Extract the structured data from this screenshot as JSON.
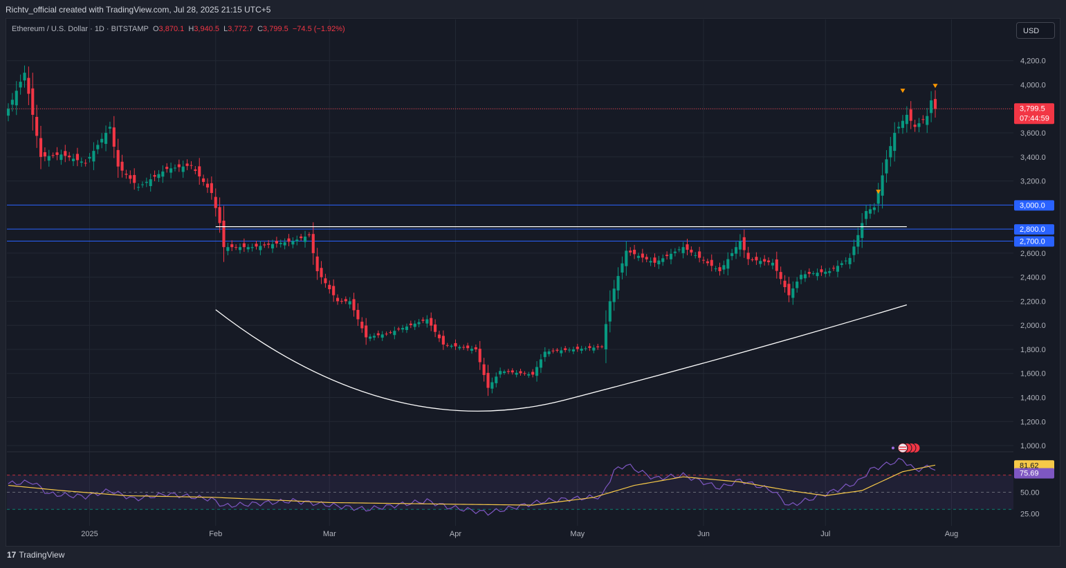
{
  "header": {
    "attribution": "Richtv_official created with TradingView.com, Jul 28, 2025 21:15 UTC+5"
  },
  "legend": {
    "symbol": "Ethereum / U.S. Dollar · 1D · BITSTAMP",
    "o_key": "O",
    "o_val": "3,870.1",
    "h_key": "H",
    "h_val": "3,940.5",
    "l_key": "L",
    "l_val": "3,772.7",
    "c_key": "C",
    "c_val": "3,799.5",
    "change": "−74.5 (−1.92%)"
  },
  "currency_button": "USD",
  "footer": {
    "brand": "TradingView",
    "brand_mark": "17"
  },
  "colors": {
    "up": "#089981",
    "down": "#f23645",
    "grid": "#232834",
    "level_line": "#2962ff",
    "rsi": "#7e57c2",
    "rsi_ma": "#f7c948",
    "text": "#b2b5be"
  },
  "chart_data": {
    "type": "candlestick",
    "title": "Ethereum / U.S. Dollar · 1D · BITSTAMP",
    "x_labels": [
      "2025",
      "Feb",
      "Mar",
      "Apr",
      "May",
      "Jun",
      "Jul",
      "Aug"
    ],
    "y_ticks": [
      "4,200.0",
      "4,000.0",
      "3,600.0",
      "3,400.0",
      "3,200.0",
      "2,600.0",
      "2,400.0",
      "2,200.0",
      "2,000.0",
      "1,800.0",
      "1,600.0",
      "1,400.0",
      "1,200.0",
      "1,000.0"
    ],
    "ylim": [
      900,
      4400
    ],
    "date_range": [
      "2024-12-12",
      "2025-07-28"
    ],
    "price_anchors": [
      {
        "date": "2024-12-12",
        "price": 3800
      },
      {
        "date": "2024-12-16",
        "price": 4100
      },
      {
        "date": "2024-12-20",
        "price": 3400
      },
      {
        "date": "2024-12-25",
        "price": 3420
      },
      {
        "date": "2024-12-31",
        "price": 3350
      },
      {
        "date": "2025-01-06",
        "price": 3650
      },
      {
        "date": "2025-01-08",
        "price": 3320
      },
      {
        "date": "2025-01-13",
        "price": 3150
      },
      {
        "date": "2025-01-20",
        "price": 3300
      },
      {
        "date": "2025-01-26",
        "price": 3330
      },
      {
        "date": "2025-01-31",
        "price": 3100
      },
      {
        "date": "2025-02-02",
        "price": 2850
      },
      {
        "date": "2025-02-03",
        "price": 2650
      },
      {
        "date": "2025-02-10",
        "price": 2650
      },
      {
        "date": "2025-02-20",
        "price": 2700
      },
      {
        "date": "2025-02-24",
        "price": 2750
      },
      {
        "date": "2025-02-26",
        "price": 2450
      },
      {
        "date": "2025-03-03",
        "price": 2200
      },
      {
        "date": "2025-03-06",
        "price": 2200
      },
      {
        "date": "2025-03-10",
        "price": 1900
      },
      {
        "date": "2025-03-15",
        "price": 1930
      },
      {
        "date": "2025-03-25",
        "price": 2050
      },
      {
        "date": "2025-03-29",
        "price": 1840
      },
      {
        "date": "2025-04-06",
        "price": 1800
      },
      {
        "date": "2025-04-09",
        "price": 1480
      },
      {
        "date": "2025-04-12",
        "price": 1620
      },
      {
        "date": "2025-04-20",
        "price": 1590
      },
      {
        "date": "2025-04-23",
        "price": 1780
      },
      {
        "date": "2025-05-07",
        "price": 1820
      },
      {
        "date": "2025-05-09",
        "price": 2200
      },
      {
        "date": "2025-05-13",
        "price": 2620
      },
      {
        "date": "2025-05-20",
        "price": 2520
      },
      {
        "date": "2025-05-27",
        "price": 2650
      },
      {
        "date": "2025-06-05",
        "price": 2450
      },
      {
        "date": "2025-06-10",
        "price": 2700
      },
      {
        "date": "2025-06-12",
        "price": 2550
      },
      {
        "date": "2025-06-18",
        "price": 2520
      },
      {
        "date": "2025-06-22",
        "price": 2250
      },
      {
        "date": "2025-06-25",
        "price": 2420
      },
      {
        "date": "2025-07-02",
        "price": 2450
      },
      {
        "date": "2025-07-07",
        "price": 2560
      },
      {
        "date": "2025-07-09",
        "price": 2750
      },
      {
        "date": "2025-07-11",
        "price": 2950
      },
      {
        "date": "2025-07-13",
        "price": 2980
      },
      {
        "date": "2025-07-16",
        "price": 3380
      },
      {
        "date": "2025-07-18",
        "price": 3600
      },
      {
        "date": "2025-07-21",
        "price": 3750
      },
      {
        "date": "2025-07-23",
        "price": 3650
      },
      {
        "date": "2025-07-26",
        "price": 3740
      },
      {
        "date": "2025-07-27",
        "price": 3870
      },
      {
        "date": "2025-07-28",
        "price": 3800
      }
    ],
    "last_price": "3,799.5",
    "countdown": "07:44:59",
    "horizontal_levels": [
      {
        "price": 3000,
        "label": "3,000.0"
      },
      {
        "price": 2800,
        "label": "2,800.0"
      },
      {
        "price": 2700,
        "label": "2,700.0"
      }
    ],
    "resistance_line": {
      "price": 2820,
      "from": "2025-02-01",
      "to": "2025-07-21"
    },
    "cup_curve": {
      "start": [
        "2025-02-01",
        2130
      ],
      "bottom": [
        "2025-04-28",
        1380
      ],
      "end": [
        "2025-07-21",
        2170
      ]
    },
    "markers": [
      {
        "date": "2025-07-14",
        "price": 3110
      },
      {
        "date": "2025-07-20",
        "price": 3950
      },
      {
        "date": "2025-07-28",
        "price": 3990
      }
    ],
    "rsi": {
      "ylim": [
        0,
        100
      ],
      "levels": [
        70,
        50,
        30
      ],
      "y_ticks": [
        "50.00",
        "25.00"
      ],
      "value_label": "75.69",
      "ma_label": "81.62",
      "anchors": [
        {
          "date": "2024-12-12",
          "value": 60
        },
        {
          "date": "2024-12-18",
          "value": 62
        },
        {
          "date": "2024-12-22",
          "value": 48
        },
        {
          "date": "2024-12-31",
          "value": 45
        },
        {
          "date": "2025-01-06",
          "value": 52
        },
        {
          "date": "2025-01-12",
          "value": 42
        },
        {
          "date": "2025-01-20",
          "value": 48
        },
        {
          "date": "2025-01-31",
          "value": 42
        },
        {
          "date": "2025-02-03",
          "value": 34
        },
        {
          "date": "2025-02-20",
          "value": 40
        },
        {
          "date": "2025-03-03",
          "value": 34
        },
        {
          "date": "2025-03-10",
          "value": 30
        },
        {
          "date": "2025-03-25",
          "value": 40
        },
        {
          "date": "2025-03-30",
          "value": 33
        },
        {
          "date": "2025-04-09",
          "value": 26
        },
        {
          "date": "2025-04-23",
          "value": 40
        },
        {
          "date": "2025-05-07",
          "value": 45
        },
        {
          "date": "2025-05-10",
          "value": 75
        },
        {
          "date": "2025-05-13",
          "value": 82
        },
        {
          "date": "2025-05-20",
          "value": 66
        },
        {
          "date": "2025-05-27",
          "value": 70
        },
        {
          "date": "2025-06-05",
          "value": 55
        },
        {
          "date": "2025-06-10",
          "value": 64
        },
        {
          "date": "2025-06-18",
          "value": 52
        },
        {
          "date": "2025-06-22",
          "value": 34
        },
        {
          "date": "2025-07-01",
          "value": 48
        },
        {
          "date": "2025-07-09",
          "value": 62
        },
        {
          "date": "2025-07-12",
          "value": 76
        },
        {
          "date": "2025-07-17",
          "value": 84
        },
        {
          "date": "2025-07-20",
          "value": 88
        },
        {
          "date": "2025-07-23",
          "value": 76
        },
        {
          "date": "2025-07-27",
          "value": 80
        },
        {
          "date": "2025-07-28",
          "value": 75.69
        }
      ],
      "ma_anchors": [
        {
          "date": "2024-12-12",
          "value": 58
        },
        {
          "date": "2024-12-25",
          "value": 52
        },
        {
          "date": "2025-01-10",
          "value": 46
        },
        {
          "date": "2025-02-01",
          "value": 44
        },
        {
          "date": "2025-03-01",
          "value": 38
        },
        {
          "date": "2025-04-01",
          "value": 36
        },
        {
          "date": "2025-04-20",
          "value": 35
        },
        {
          "date": "2025-05-05",
          "value": 44
        },
        {
          "date": "2025-05-15",
          "value": 58
        },
        {
          "date": "2025-05-27",
          "value": 68
        },
        {
          "date": "2025-06-10",
          "value": 62
        },
        {
          "date": "2025-06-22",
          "value": 52
        },
        {
          "date": "2025-07-01",
          "value": 46
        },
        {
          "date": "2025-07-10",
          "value": 52
        },
        {
          "date": "2025-07-20",
          "value": 74
        },
        {
          "date": "2025-07-28",
          "value": 81.62
        }
      ]
    }
  }
}
